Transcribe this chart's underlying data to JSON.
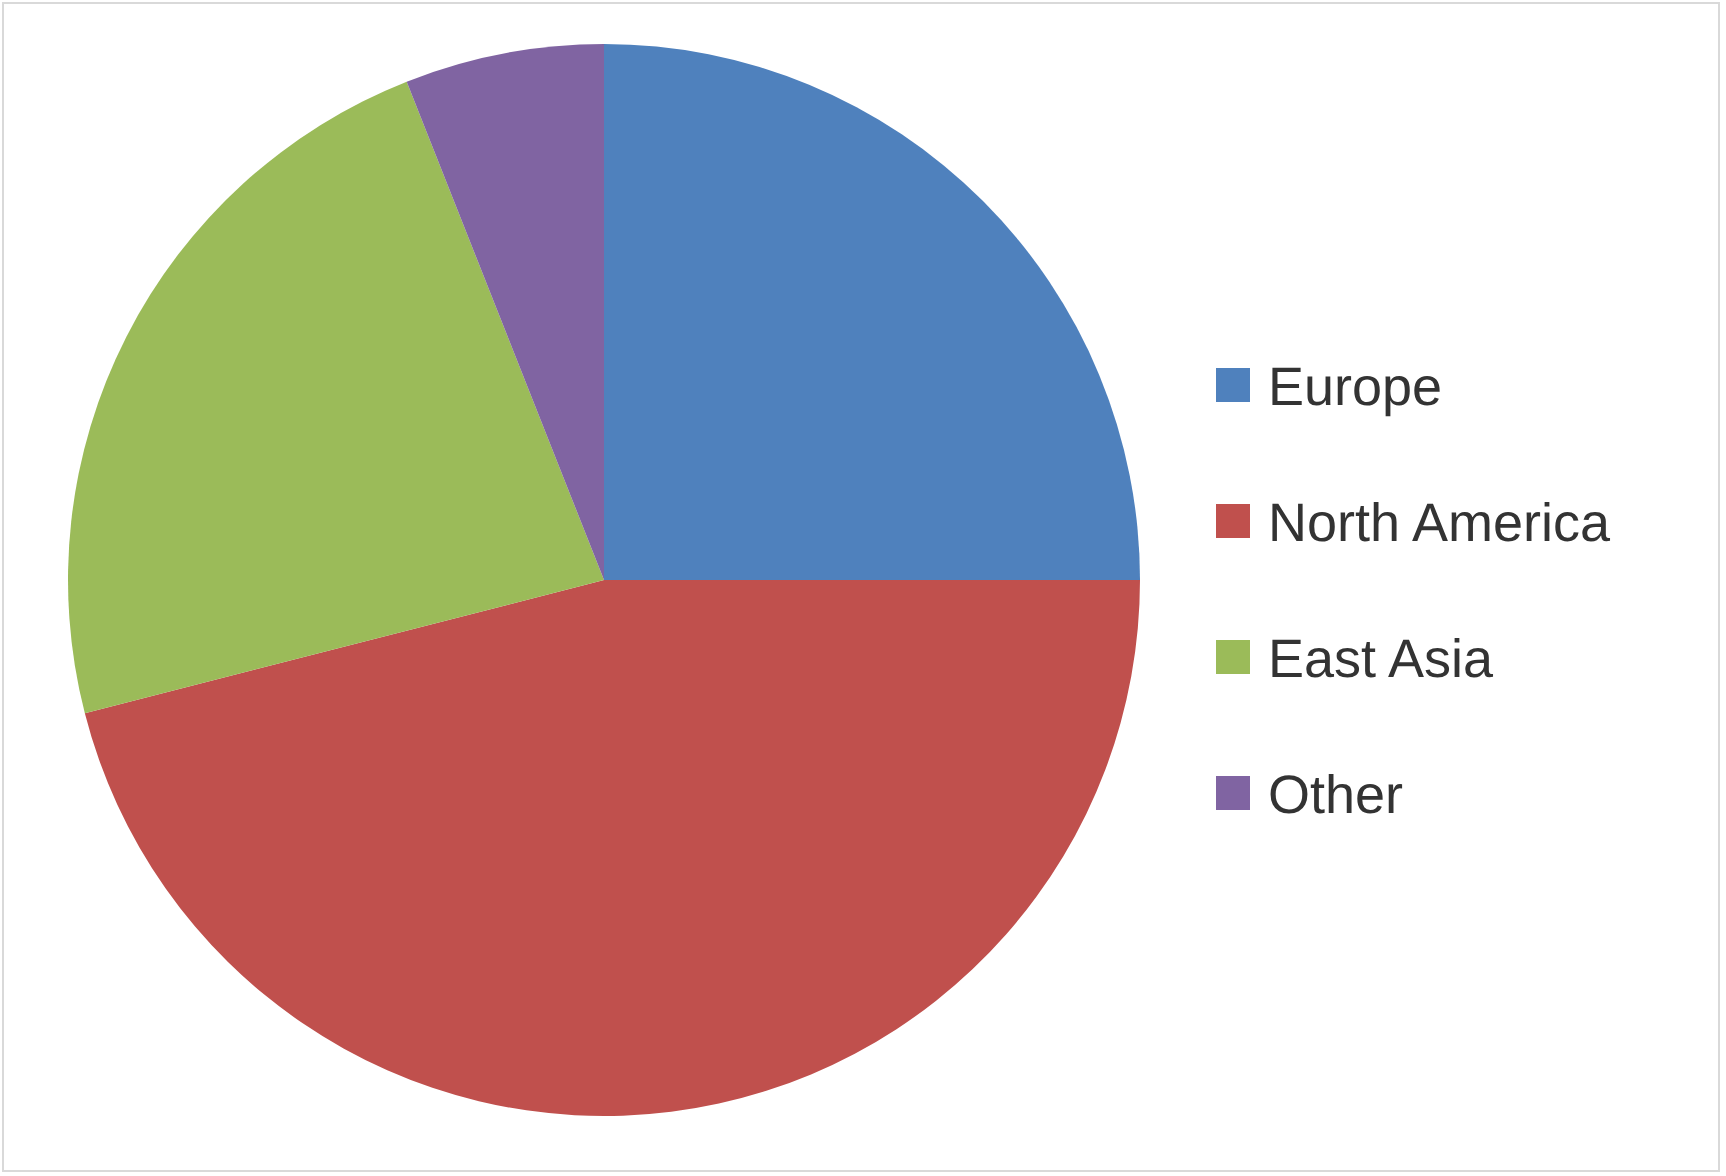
{
  "chart_data": {
    "type": "pie",
    "categories": [
      "Europe",
      "North America",
      "East Asia",
      "Other"
    ],
    "values": [
      25,
      46,
      23,
      6
    ],
    "colors": [
      "#4f81bd",
      "#c0504d",
      "#9bbb59",
      "#8064a2"
    ],
    "legend": "right"
  }
}
